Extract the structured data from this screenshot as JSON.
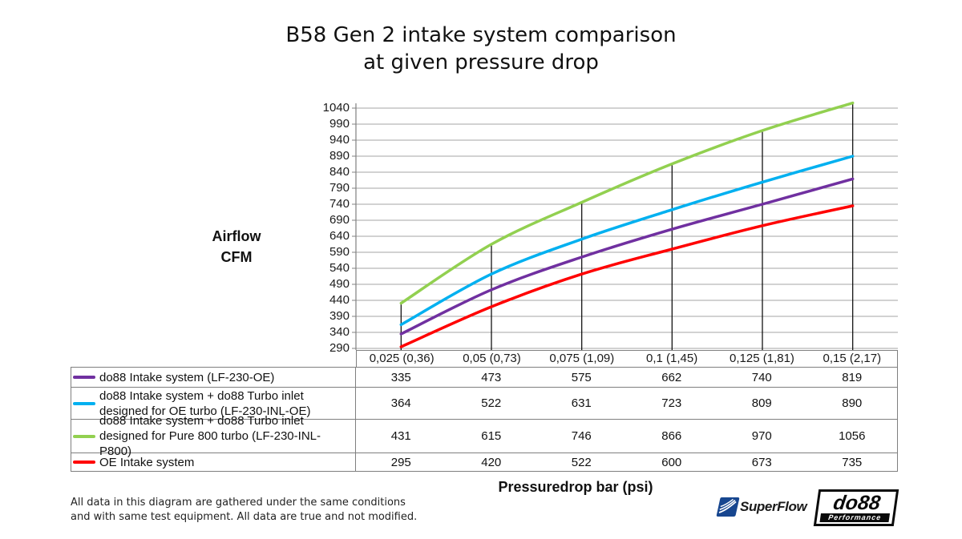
{
  "title": {
    "line1": "B58 Gen 2 intake system comparison",
    "line2": "at given pressure drop"
  },
  "chart_data": {
    "type": "line",
    "x_categories": [
      "0,025 (0,36)",
      "0,05 (0,73)",
      "0,075 (1,09)",
      "0,1 (1,45)",
      "0,125 (1,81)",
      "0,15 (2,17)"
    ],
    "xlabel": "Pressuredrop bar (psi)",
    "ylabel_line1": "Airflow",
    "ylabel_line2": "CFM",
    "y_min": 290,
    "y_max": 1040,
    "y_ticks": [
      290,
      340,
      390,
      440,
      490,
      540,
      590,
      640,
      690,
      740,
      790,
      840,
      890,
      940,
      990,
      1040
    ],
    "grid": true,
    "legend_position": "table-left",
    "series": [
      {
        "name": "do88 Intake system (LF-230-OE)",
        "color": "#7030A0",
        "values": [
          335,
          473,
          575,
          662,
          740,
          819
        ]
      },
      {
        "name": "do88 Intake system + do88 Turbo inlet designed for OE turbo (LF-230-INL-OE)",
        "color": "#00B0F0",
        "values": [
          364,
          522,
          631,
          723,
          809,
          890
        ]
      },
      {
        "name": "do88 Intake system + do88 Turbo inlet designed for Pure 800 turbo (LF-230-INL-P800)",
        "color": "#92D050",
        "values": [
          431,
          615,
          746,
          866,
          970,
          1056
        ]
      },
      {
        "name": "OE Intake system",
        "color": "#FF0000",
        "values": [
          295,
          420,
          522,
          600,
          673,
          735
        ]
      }
    ]
  },
  "footer": {
    "line1": "All data in this diagram are gathered under the same conditions",
    "line2": "and with same test equipment. All data are true and not modified."
  },
  "logos": {
    "superflow": {
      "text": "SuperFlow",
      "color": "#17468F"
    },
    "do88": {
      "text": "do88",
      "tagline": "Performance",
      "color": "#0a0a0a"
    }
  }
}
